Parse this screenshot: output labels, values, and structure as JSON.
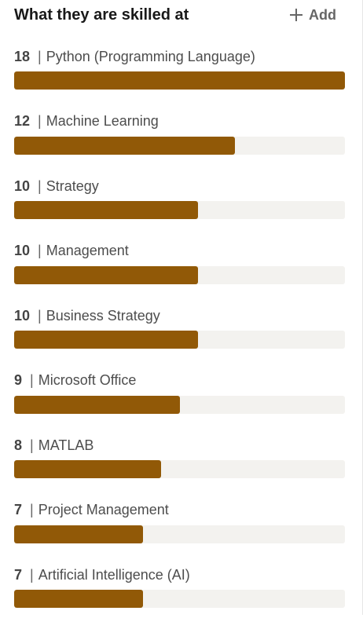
{
  "header": {
    "title": "What they are skilled at",
    "add_label": "Add"
  },
  "colors": {
    "bar_fill": "#915907",
    "bar_track": "#f3f2ef"
  },
  "skills": [
    {
      "count": "18",
      "name": "Python (Programming Language)",
      "fraction": 1.0
    },
    {
      "count": "12",
      "name": "Machine Learning",
      "fraction": 0.667
    },
    {
      "count": "10",
      "name": "Strategy",
      "fraction": 0.556
    },
    {
      "count": "10",
      "name": "Management",
      "fraction": 0.556
    },
    {
      "count": "10",
      "name": "Business Strategy",
      "fraction": 0.556
    },
    {
      "count": "9",
      "name": "Microsoft Office",
      "fraction": 0.5
    },
    {
      "count": "8",
      "name": "MATLAB",
      "fraction": 0.444
    },
    {
      "count": "7",
      "name": "Project Management",
      "fraction": 0.389
    },
    {
      "count": "7",
      "name": "Artificial Intelligence (AI)",
      "fraction": 0.389
    }
  ]
}
